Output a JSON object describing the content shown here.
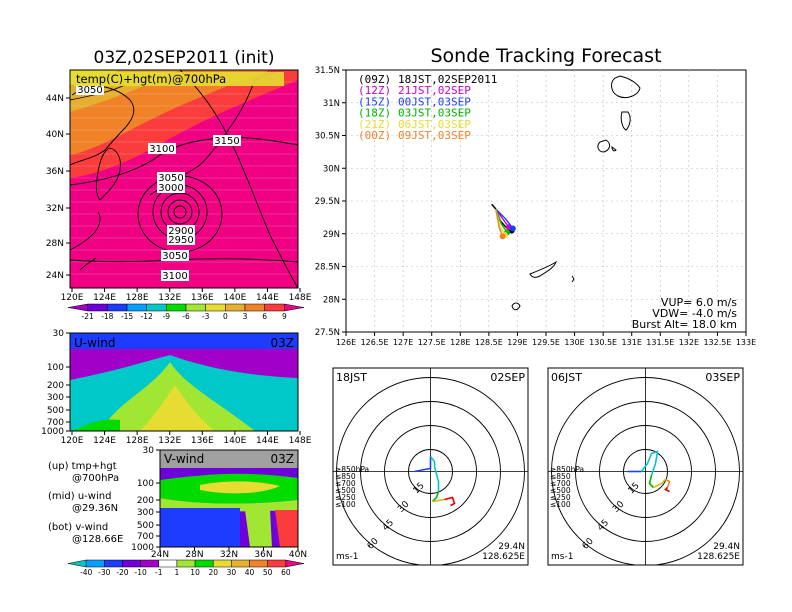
{
  "left": {
    "title": "03Z,02SEP2011 (init)",
    "map": {
      "label": "temp(C)+hgt(m)@700hPa",
      "lat_ticks": [
        "44N",
        "40N",
        "36N",
        "32N",
        "28N",
        "24N"
      ],
      "contours": [
        "3050",
        "3100",
        "3150",
        "3050",
        "3000",
        "2900",
        "2950",
        "3050",
        "3100"
      ]
    },
    "lon_ticks": [
      "120E",
      "124E",
      "128E",
      "132E",
      "136E",
      "140E",
      "144E",
      "148E"
    ],
    "temp_colorbar": {
      "labels": [
        "-21",
        "-18",
        "-15",
        "-12",
        "-9",
        "-6",
        "-3",
        "0",
        "3",
        "6",
        "9"
      ],
      "colors": [
        "#a000c8",
        "#6e00dc",
        "#1e3cff",
        "#00a0ff",
        "#00c8c8",
        "#00dc00",
        "#a0e632",
        "#e6dc32",
        "#e6af2d",
        "#f08228",
        "#fa3c3c",
        "#f00082"
      ]
    },
    "uwind": {
      "label": "U-wind",
      "time": "03Z",
      "p_ticks": [
        "30",
        "100",
        "200",
        "300",
        "500",
        "700",
        "1000"
      ]
    },
    "vwind": {
      "label": "V-wind",
      "time": "03Z",
      "p_ticks": [
        "30",
        "100",
        "200",
        "300",
        "500",
        "700",
        "1000"
      ],
      "lat_ticks": [
        "24N",
        "28N",
        "32N",
        "36N",
        "40N"
      ]
    },
    "notes": [
      {
        "a": "(up) tmp+hgt",
        "b": "@700hPa"
      },
      {
        "a": "(mid) u-wind",
        "b": "@29.36N"
      },
      {
        "a": "(bot) v-wind",
        "b": "@128.66E"
      }
    ],
    "wind_colorbar": {
      "labels": [
        "-40",
        "-30",
        "-20",
        "-10",
        "-1",
        "1",
        "10",
        "20",
        "30",
        "40",
        "50",
        "60"
      ],
      "colors": [
        "#00c8c8",
        "#00a0ff",
        "#1e3cff",
        "#6e00dc",
        "#a000c8",
        "#ffffff",
        "#a0e632",
        "#00dc00",
        "#e6dc32",
        "#e6af2d",
        "#f08228",
        "#fa3c3c",
        "#f00082"
      ]
    }
  },
  "right": {
    "title": "Sonde Tracking Forecast",
    "legend": [
      {
        "z": "(09Z)",
        "text": "18JST,02SEP2011",
        "color": "#000000"
      },
      {
        "z": "(12Z)",
        "text": "21JST,02SEP",
        "color": "#c800c8"
      },
      {
        "z": "(15Z)",
        "text": "00JST,03SEP",
        "color": "#1e3cff"
      },
      {
        "z": "(18Z)",
        "text": "03JST,03SEP",
        "color": "#00b400"
      },
      {
        "z": "(21Z)",
        "text": "06JST,03SEP",
        "color": "#e6dc32"
      },
      {
        "z": "(00Z)",
        "text": "09JST,03SEP",
        "color": "#f08228"
      }
    ],
    "params": [
      "VUP= 6.0 m/s",
      "VDW= -4.0 m/s",
      "Burst Alt= 18.0 km"
    ],
    "lat_ticks": [
      "31.5N",
      "31N",
      "30.5N",
      "30N",
      "29.5N",
      "29N",
      "28.5N",
      "28N",
      "27.5N"
    ],
    "lon_ticks": [
      "126E",
      "126.5E",
      "127E",
      "127.5E",
      "128E",
      "128.5E",
      "129E",
      "129.5E",
      "130E",
      "130.5E",
      "131E",
      "131.5E",
      "132E",
      "132.5E",
      "133E"
    ]
  },
  "hodo1": {
    "time": "18JST",
    "date": "02SEP",
    "lat": "29.4N",
    "lon": "128.625E",
    "unit": "ms-1",
    "rings": [
      "15",
      "30",
      "45",
      "60"
    ]
  },
  "hodo2": {
    "time": "06JST",
    "date": "03SEP",
    "lat": "29.4N",
    "lon": "128.625E",
    "unit": "ms-1",
    "rings": [
      "15",
      "30",
      "45",
      "60"
    ]
  },
  "hodo_legend": [
    {
      "t": "≥850hPa",
      "c": "#e00000"
    },
    {
      "t": "≤850",
      "c": "#f08228"
    },
    {
      "t": "≤700",
      "c": "#d0c000"
    },
    {
      "t": "≤500",
      "c": "#00b400"
    },
    {
      "t": "≤250",
      "c": "#00c8c8"
    },
    {
      "t": "≤100",
      "c": "#1e3cff"
    }
  ],
  "chart_data": {
    "type": "scatter",
    "title": "Sonde Tracking Forecast",
    "launch_point": {
      "lat": 29.4,
      "lon": 128.625
    },
    "xlim": [
      126,
      133
    ],
    "ylim": [
      27.5,
      31.5
    ],
    "series": [
      {
        "name": "(09Z) 18JST,02SEP2011",
        "points": [
          [
            128.62,
            29.38
          ],
          [
            128.7,
            29.2
          ],
          [
            128.8,
            29.1
          ],
          [
            128.9,
            29.05
          ]
        ]
      },
      {
        "name": "(12Z) 21JST,02SEP",
        "points": [
          [
            128.62,
            29.38
          ],
          [
            128.75,
            29.22
          ],
          [
            128.85,
            29.1
          ]
        ]
      },
      {
        "name": "(15Z) 00JST,03SEP",
        "points": [
          [
            128.62,
            29.38
          ],
          [
            128.8,
            29.22
          ],
          [
            128.92,
            29.08
          ]
        ]
      },
      {
        "name": "(18Z) 03JST,03SEP",
        "points": [
          [
            128.62,
            29.38
          ],
          [
            128.72,
            29.15
          ],
          [
            128.82,
            29.02
          ]
        ]
      },
      {
        "name": "(21Z) 06JST,03SEP",
        "points": [
          [
            128.62,
            29.38
          ],
          [
            128.7,
            29.1
          ],
          [
            128.78,
            28.98
          ]
        ]
      },
      {
        "name": "(00Z) 09JST,03SEP",
        "points": [
          [
            128.62,
            29.38
          ],
          [
            128.68,
            29.1
          ],
          [
            128.74,
            28.96
          ]
        ]
      }
    ]
  }
}
